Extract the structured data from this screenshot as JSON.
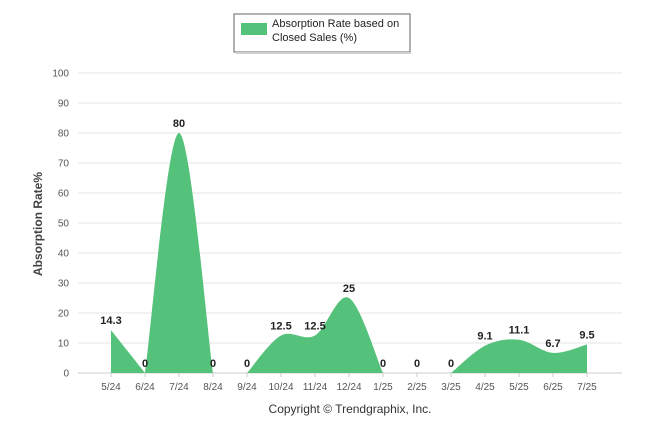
{
  "chart_data": {
    "type": "area",
    "title": "",
    "xlabel": "",
    "ylabel": "Absorption Rate%",
    "ylim": [
      0,
      100
    ],
    "yticks": [
      0,
      10,
      20,
      30,
      40,
      50,
      60,
      70,
      80,
      90,
      100
    ],
    "grid": true,
    "legend_position": "top-center",
    "categories": [
      "5/24",
      "6/24",
      "7/24",
      "8/24",
      "9/24",
      "10/24",
      "11/24",
      "12/24",
      "1/25",
      "2/25",
      "3/25",
      "4/25",
      "5/25",
      "6/25",
      "7/25"
    ],
    "series": [
      {
        "name": "Absorption Rate based on Closed Sales (%)",
        "values": [
          14.3,
          0,
          80,
          0,
          0,
          12.5,
          12.5,
          25,
          0,
          0,
          0,
          9.1,
          11.1,
          6.7,
          9.5
        ],
        "color": "#55c27b"
      }
    ],
    "footer": "Copyright © Trendgraphix, Inc."
  },
  "colors": {
    "area_fill": "#55c27b",
    "grid": "#e6e6e6",
    "axis_text": "#555555",
    "label_text": "#222222"
  }
}
